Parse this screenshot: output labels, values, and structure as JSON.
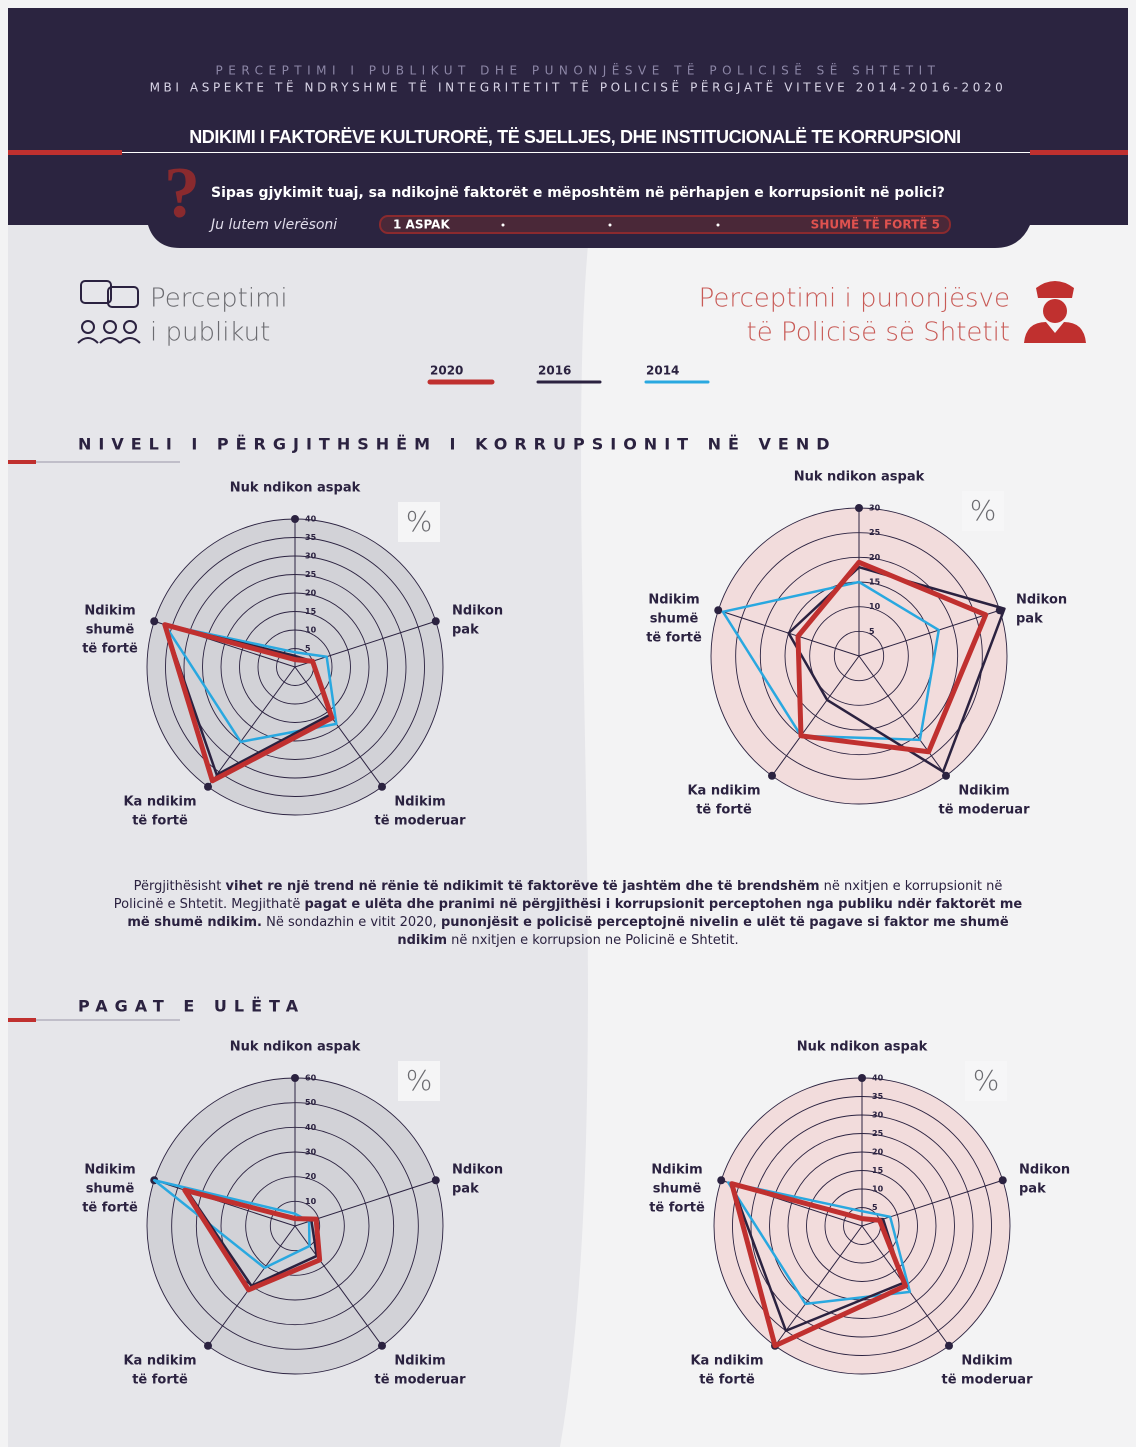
{
  "header": {
    "subtitle_1": "PERCEPTIMI I PUBLIKUT DHE PUNONJËSVE TË POLICISË SË SHTETIT",
    "subtitle_2": "MBI ASPEKTE TË NDRYSHME TË INTEGRITETIT TË POLICISË PËRGJATË VITEVE 2014-2016-2020",
    "title": "NDIKIMI I FAKTORËVE KULTURORË, TË SJELLJES, DHE INSTITUCIONALË TE KORRUPSIONI",
    "question": "Sipas gjykimit tuaj, sa ndikojnë faktorët e mëposhtëm në përhapjen e korrupsionit në polici?",
    "prompt": "Ju lutem vlerësoni",
    "scale_min": "1 ASPAK",
    "scale_max": "SHUMË TË FORTË 5"
  },
  "groups": {
    "public": [
      "Perceptimi",
      "i publikut"
    ],
    "police": [
      "Perceptimi i punonjësve",
      "të Policisë së Shtetit"
    ]
  },
  "sections": [
    "NIVELI I PËRGJITHSHËM I KORRUPSIONIT NË VEND",
    "PAGAT E ULËTA"
  ],
  "paragraph": [
    {
      "text": "Përgjithësisht ",
      "bold": false
    },
    {
      "text": "vihet re një trend në rënie të ndikimit të faktorëve të jashtëm dhe të brendshëm",
      "bold": true
    },
    {
      "text": " në nxitjen e korrupsionit në Policinë e Shtetit. Megjithatë ",
      "bold": false
    },
    {
      "text": "pagat e ulëta dhe pranimi në përgjithësi i korrupsionit perceptohen nga publiku ndër faktorët me më shumë ndikim.",
      "bold": true
    },
    {
      "text": " Në sondazhin e vitit 2020, ",
      "bold": false
    },
    {
      "text": "punonjësit e policisë perceptojnë nivelin e ulët të pagave si faktor me shumë ndikim",
      "bold": true
    },
    {
      "text": " në nxitjen e korrupsion ne Policinë e Shtetit.",
      "bold": false
    }
  ],
  "chart_data": [
    {
      "type": "radar",
      "unit_label": "%",
      "disk_color": "#d2d2d7",
      "categories": [
        [
          "Nuk ndikon aspak"
        ],
        [
          "Ndikon",
          "pak"
        ],
        [
          "Ndikim",
          "të moderuar"
        ],
        [
          "Ka ndikim",
          "të fortë"
        ],
        [
          "Ndikim",
          "shumë",
          "të fortë"
        ]
      ],
      "rlim": [
        0,
        40
      ],
      "rticks": [
        5,
        10,
        15,
        20,
        25,
        30,
        35,
        40
      ],
      "series": [
        {
          "name": "2020",
          "color": "#c0302f",
          "values": [
            2,
            5,
            17,
            38,
            37
          ]
        },
        {
          "name": "2016",
          "color": "#2b2240",
          "values": [
            3,
            5,
            16,
            36,
            37
          ]
        },
        {
          "name": "2014",
          "color": "#29a8e0",
          "values": [
            4,
            9,
            19,
            25,
            37
          ]
        }
      ]
    },
    {
      "type": "radar",
      "unit_label": "%",
      "disk_color": "#f2dcdc",
      "categories": [
        [
          "Nuk ndikon aspak"
        ],
        [
          "Ndikon",
          "pak"
        ],
        [
          "Ndikim",
          "të moderuar"
        ],
        [
          "Ka ndikim",
          "të fortë"
        ],
        [
          "Ndikim",
          "shumë",
          "të fortë"
        ]
      ],
      "rlim": [
        0,
        30
      ],
      "rticks": [
        5,
        10,
        15,
        20,
        25,
        30
      ],
      "series": [
        {
          "name": "2020",
          "color": "#c0302f",
          "values": [
            19,
            27,
            24,
            20,
            13
          ]
        },
        {
          "name": "2016",
          "color": "#2b2240",
          "values": [
            18,
            31,
            29,
            11,
            15
          ]
        },
        {
          "name": "2014",
          "color": "#29a8e0",
          "values": [
            15,
            17,
            21,
            20,
            29
          ]
        }
      ]
    },
    {
      "type": "radar",
      "unit_label": "%",
      "disk_color": "#d2d2d7",
      "categories": [
        [
          "Nuk ndikon aspak"
        ],
        [
          "Ndikon",
          "pak"
        ],
        [
          "Ndikim",
          "të moderuar"
        ],
        [
          "Ka ndikim",
          "të fortë"
        ],
        [
          "Ndikim",
          "shumë",
          "të fortë"
        ]
      ],
      "rlim": [
        0,
        60
      ],
      "rticks": [
        10,
        20,
        30,
        40,
        50,
        60
      ],
      "series": [
        {
          "name": "2020",
          "color": "#c0302f",
          "values": [
            3,
            9,
            17,
            32,
            47
          ]
        },
        {
          "name": "2016",
          "color": "#2b2240",
          "values": [
            3,
            7,
            15,
            30,
            46
          ]
        },
        {
          "name": "2014",
          "color": "#29a8e0",
          "values": [
            5,
            6,
            10,
            21,
            60
          ]
        }
      ]
    },
    {
      "type": "radar",
      "unit_label": "%",
      "disk_color": "#f2dcdc",
      "categories": [
        [
          "Nuk ndikon aspak"
        ],
        [
          "Ndikon",
          "pak"
        ],
        [
          "Ndikim",
          "të moderuar"
        ],
        [
          "Ka ndikim",
          "të fortë"
        ],
        [
          "Ndikim",
          "shumë",
          "të fortë"
        ]
      ],
      "rlim": [
        0,
        40
      ],
      "rticks": [
        5,
        10,
        15,
        20,
        25,
        30,
        35,
        40
      ],
      "series": [
        {
          "name": "2020",
          "color": "#c0302f",
          "values": [
            2,
            5,
            20,
            40,
            37
          ]
        },
        {
          "name": "2016",
          "color": "#2b2240",
          "values": [
            2,
            6,
            19,
            35,
            37
          ]
        },
        {
          "name": "2014",
          "color": "#29a8e0",
          "values": [
            4,
            8,
            22,
            26,
            38
          ]
        }
      ]
    }
  ]
}
